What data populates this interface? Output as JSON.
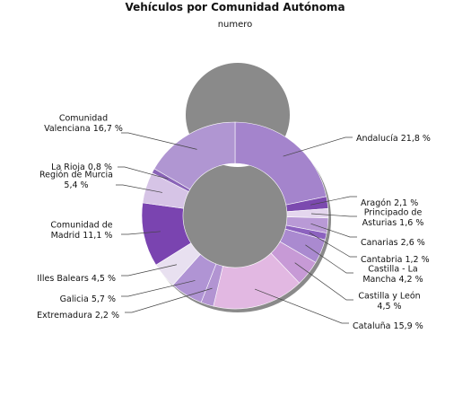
{
  "chart_data": {
    "type": "pie",
    "donut": true,
    "title": "Vehículos por Comunidad Autónoma",
    "subtitle": "numero",
    "start_angle_deg": 0,
    "direction": "clockwise",
    "slices": [
      {
        "name": "Andalucía",
        "value": 21.8,
        "label": [
          "Andalucía 21,8 %"
        ],
        "color": "#a484cc"
      },
      {
        "name": "Aragón",
        "value": 2.1,
        "label": [
          "Aragón 2,1 %"
        ],
        "color": "#7c4aaf"
      },
      {
        "name": "Principado de Asturias",
        "value": 1.6,
        "label": [
          "Principado de",
          "Asturias 1,6 %"
        ],
        "color": "#e4d6ee"
      },
      {
        "name": "Canarias",
        "value": 2.6,
        "label": [
          "Canarias 2,6 %"
        ],
        "color": "#b99ad6"
      },
      {
        "name": "Cantabria",
        "value": 1.2,
        "label": [
          "Cantabria 1,2 %"
        ],
        "color": "#8c62bf"
      },
      {
        "name": "Castilla - La Mancha",
        "value": 4.2,
        "label": [
          "Castilla - La",
          "Mancha 4,2 %"
        ],
        "color": "#aa8ad0"
      },
      {
        "name": "Castilla y León",
        "value": 4.5,
        "label": [
          "Castilla y León",
          "4,5 %"
        ],
        "color": "#c79ad6"
      },
      {
        "name": "Cataluña",
        "value": 15.9,
        "label": [
          "Cataluña 15,9 %"
        ],
        "color": "#e2b8e2"
      },
      {
        "name": "Extremadura",
        "value": 2.2,
        "label": [
          "Extremadura 2,2 %"
        ],
        "color": "#b294d2"
      },
      {
        "name": "Galicia",
        "value": 5.7,
        "label": [
          "Galicia 5,7 %"
        ],
        "color": "#b094d4"
      },
      {
        "name": "Illes Balears",
        "value": 4.5,
        "label": [
          "Illes Balears 4,5 %"
        ],
        "color": "#e8e0f0"
      },
      {
        "name": "Comunidad de Madrid",
        "value": 11.1,
        "label": [
          "Comunidad de",
          "Madrid 11,1 %"
        ],
        "color": "#7a44b0"
      },
      {
        "name": "Región de Murcia",
        "value": 5.4,
        "label": [
          "Región de Murcia",
          "5,4 %"
        ],
        "color": "#d6c4e6"
      },
      {
        "name": "La Rioja",
        "value": 0.8,
        "label": [
          "La Rioja 0,8 %"
        ],
        "color": "#8a64b8"
      },
      {
        "name": "Comunidad Valenciana",
        "value": 16.7,
        "label": [
          "Comunidad",
          "Valenciana 16,7 %"
        ],
        "color": "#b096d2"
      }
    ]
  }
}
